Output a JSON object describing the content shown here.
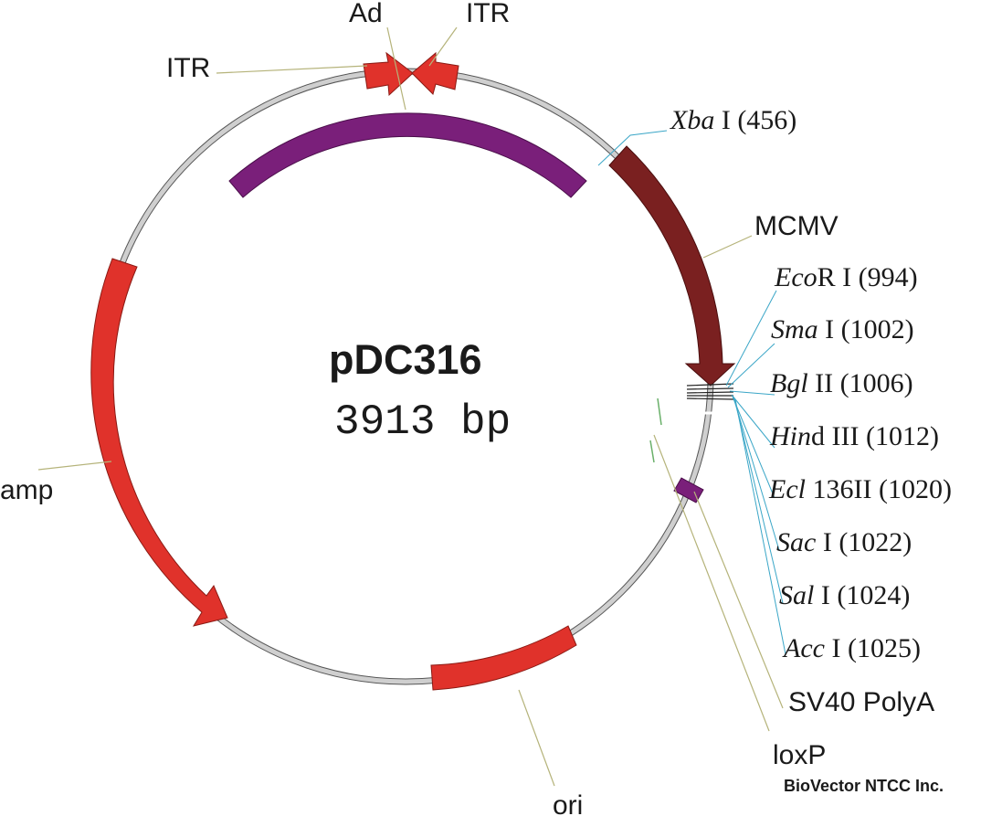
{
  "plasmid": {
    "name": "pDC316",
    "size": "3913 bp"
  },
  "features": {
    "itr_left": "ITR",
    "ad": "Ad",
    "itr_right": "ITR",
    "mcmv": "MCMV",
    "amp": "amp",
    "ori": "ori",
    "sv40": "SV40 PolyA",
    "loxp": "loxP"
  },
  "sites": {
    "xba": {
      "italic": "Xba",
      "rest": " I (456)"
    },
    "eco": {
      "italic": "Eco",
      "rest": "R I (994)"
    },
    "sma": {
      "italic": "Sma",
      "rest": " I (1002)"
    },
    "bgl": {
      "italic": "Bgl",
      "rest": " II (1006)"
    },
    "hind": {
      "italic": "Hin",
      "rest": "d III (1012)"
    },
    "ecl": {
      "italic": "Ecl",
      "rest": " 136II (1020)"
    },
    "sac": {
      "italic": "Sac",
      "rest": " I (1022)"
    },
    "sal": {
      "italic": "Sal",
      "rest": " I (1024)"
    },
    "acc": {
      "italic": "Acc",
      "rest": " I (1025)"
    }
  },
  "credit": "BioVector NTCC Inc.",
  "colors": {
    "backbone": "#c8c8c8",
    "red_feature": "#e0322b",
    "purple_feature": "#7a1f7a",
    "mcmv_feature": "#7a2020",
    "site_leader": "#3aa6c7",
    "feature_leader": "#b5b37a"
  }
}
